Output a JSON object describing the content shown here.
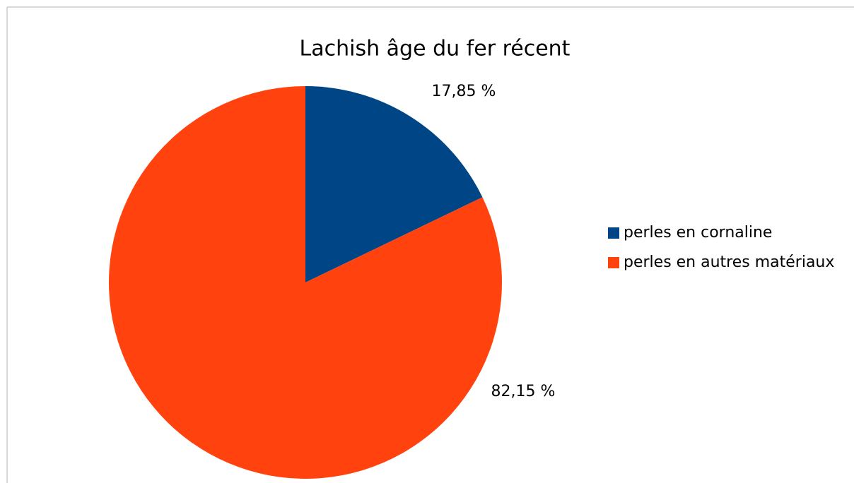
{
  "chart_data": {
    "type": "pie",
    "title": "Lachish âge du fer récent",
    "categories": [
      "perles en cornaline",
      "perles en autres matériaux"
    ],
    "values": [
      17.85,
      82.15
    ],
    "value_labels": [
      "17,85 %",
      "82,15 %"
    ],
    "colors": [
      "#004586",
      "#ff420e"
    ],
    "legend": "right"
  }
}
